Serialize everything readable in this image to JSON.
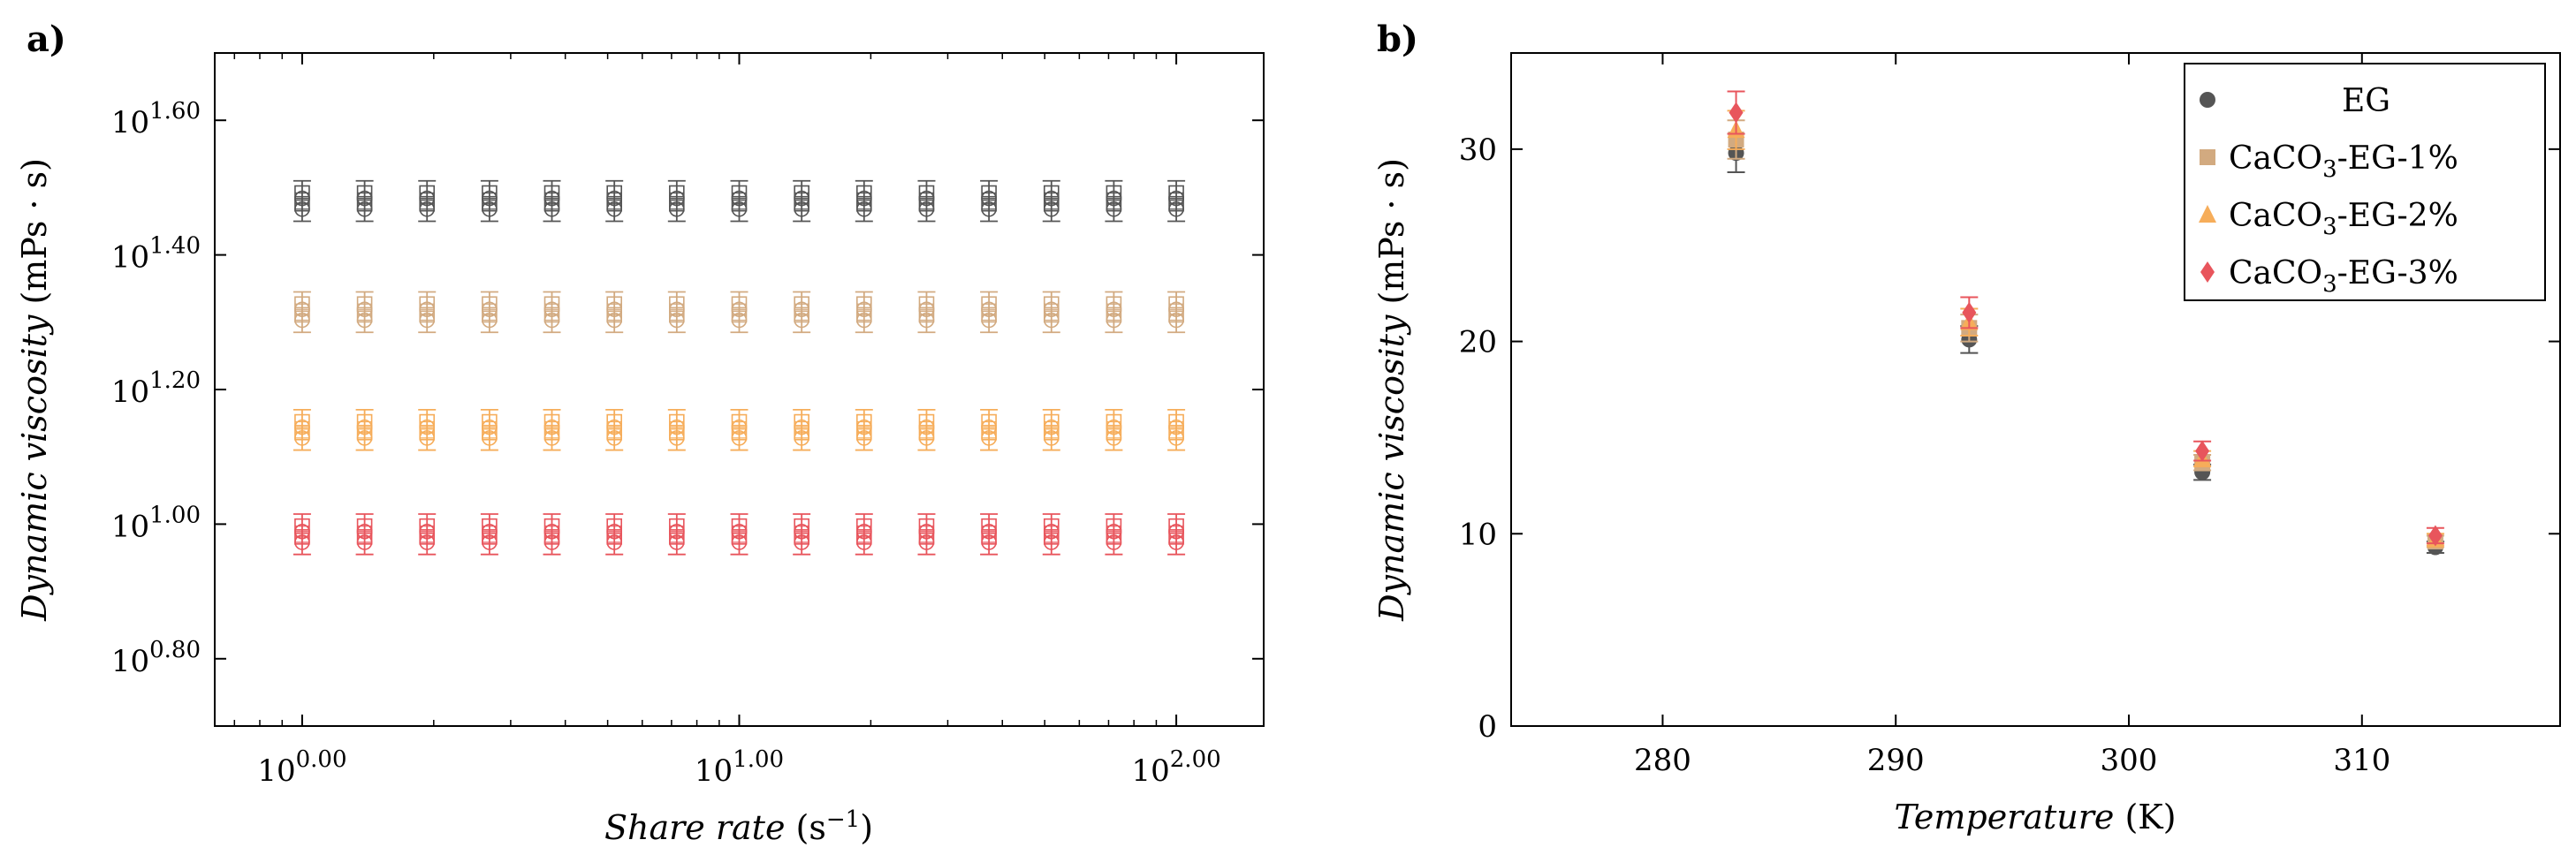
{
  "panel_labels": {
    "a": "a)",
    "b": "b)"
  },
  "colors": {
    "EG": "#555555",
    "CaCO3-EG-1%": "#d2aa80",
    "CaCO3-EG-2%": "#f6ad5a",
    "CaCO3-EG-3%": "#e8555c"
  },
  "chart_data": [
    {
      "type": "scatter",
      "panel": "a)",
      "title": "",
      "xlabel": {
        "italic": "Share rate",
        "unit_pre": " (s",
        "unit_sup": "−1",
        "unit_post": ")"
      },
      "ylabel": {
        "italic": "Dynamic viscosity",
        "unit": " (mPs · s)"
      },
      "xscale": "log",
      "yscale": "log",
      "xlim_exp": [
        -0.2,
        2.2
      ],
      "ylim_exp": [
        0.7,
        1.7
      ],
      "x_ticks": [
        {
          "base": "10",
          "exp": "0.00",
          "value": 0
        },
        {
          "base": "10",
          "exp": "1.00",
          "value": 1
        },
        {
          "base": "10",
          "exp": "2.00",
          "value": 2
        }
      ],
      "y_ticks": [
        {
          "base": "10",
          "exp": "0.80",
          "value": 0.8
        },
        {
          "base": "10",
          "exp": "1.00",
          "value": 1.0
        },
        {
          "base": "10",
          "exp": "1.20",
          "value": 1.2
        },
        {
          "base": "10",
          "exp": "1.40",
          "value": 1.4
        },
        {
          "base": "10",
          "exp": "1.60",
          "value": 1.6
        }
      ],
      "x_points_log": [
        0,
        0.1429,
        0.2857,
        0.4286,
        0.5714,
        0.7143,
        0.8571,
        1.0,
        1.1429,
        1.2857,
        1.4286,
        1.5714,
        1.7143,
        1.8571,
        2.0
      ],
      "series": [
        {
          "name": "EG",
          "color": "#555555",
          "y_log": 1.48,
          "err_log": 0.03
        },
        {
          "name": "CaCO3-EG-1%",
          "color": "#d2aa80",
          "y_log": 1.315,
          "err_log": 0.03
        },
        {
          "name": "CaCO3-EG-2%",
          "color": "#f6ad5a",
          "y_log": 1.14,
          "err_log": 0.03
        },
        {
          "name": "CaCO3-EG-3%",
          "color": "#e8555c",
          "y_log": 0.985,
          "err_log": 0.03
        }
      ]
    },
    {
      "type": "scatter",
      "panel": "b)",
      "title": "",
      "xlabel": {
        "italic": "Temperature",
        "unit": " (K)"
      },
      "ylabel": {
        "italic": "Dynamic viscosity",
        "unit": " (mPs · s)"
      },
      "xlim": [
        273.5,
        318.5
      ],
      "ylim": [
        0,
        35
      ],
      "x_ticks": [
        280,
        290,
        300,
        310
      ],
      "y_ticks": [
        0,
        10,
        20,
        30
      ],
      "x": [
        283.15,
        293.15,
        303.15,
        313.15
      ],
      "series": [
        {
          "name": "EG",
          "label_main": "EG",
          "label_sub": "",
          "label_rest": "",
          "marker": "circle",
          "color": "#555555",
          "values": [
            29.8,
            20.1,
            13.2,
            9.3
          ],
          "errors": [
            1.0,
            0.7,
            0.4,
            0.3
          ]
        },
        {
          "name": "CaCO3-EG-1%",
          "label_main": "CaCO",
          "label_sub": "3",
          "label_rest": "-EG-1%",
          "marker": "square",
          "color": "#d2aa80",
          "values": [
            30.5,
            20.7,
            13.7,
            9.6
          ],
          "errors": [
            1.0,
            0.7,
            0.4,
            0.3
          ]
        },
        {
          "name": "CaCO3-EG-2%",
          "label_main": "CaCO",
          "label_sub": "3",
          "label_rest": "-EG-2%",
          "marker": "triangle",
          "color": "#f6ad5a",
          "values": [
            31.0,
            21.0,
            13.9,
            9.7
          ],
          "errors": [
            1.0,
            0.7,
            0.4,
            0.3
          ]
        },
        {
          "name": "CaCO3-EG-3%",
          "label_main": "CaCO",
          "label_sub": "3",
          "label_rest": "-EG-3%",
          "marker": "diamond",
          "color": "#e8555c",
          "values": [
            31.9,
            21.5,
            14.3,
            9.9
          ],
          "errors": [
            1.1,
            0.8,
            0.5,
            0.4
          ]
        }
      ],
      "legend_position": "top-right"
    }
  ]
}
